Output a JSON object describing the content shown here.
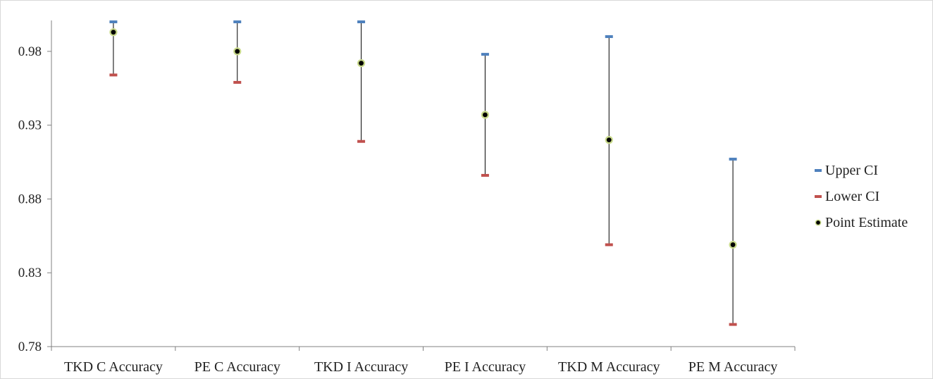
{
  "chart_data": {
    "type": "scatter",
    "title": "",
    "xlabel": "",
    "ylabel": "",
    "categories": [
      "TKD C Accuracy",
      "PE C Accuracy",
      "TKD I Accuracy",
      "PE I Accuracy",
      "TKD M Accuracy",
      "PE M Accuracy"
    ],
    "ylim": [
      0.78,
      1.0
    ],
    "yticks": [
      "0.78",
      "0.83",
      "0.88",
      "0.93",
      "0.98"
    ],
    "ytick_values": [
      0.78,
      0.83,
      0.88,
      0.93,
      0.98
    ],
    "grid": false,
    "legend_position": "right",
    "series": [
      {
        "name": "Upper CI",
        "values": [
          1.0,
          1.0,
          1.0,
          0.978,
          0.99,
          0.907
        ],
        "marker": "dash",
        "color": "#4f81bd"
      },
      {
        "name": "Lower CI",
        "values": [
          0.964,
          0.959,
          0.919,
          0.896,
          0.849,
          0.795
        ],
        "marker": "dash",
        "color": "#c0504d"
      },
      {
        "name": "Point Estimate",
        "values": [
          0.993,
          0.98,
          0.972,
          0.937,
          0.92,
          0.849
        ],
        "marker": "circle",
        "color": "#000000",
        "outline": "#c8d98a"
      }
    ],
    "error_bars": {
      "color": "#000000",
      "from_series": "Lower CI",
      "to_series": "Upper CI"
    }
  }
}
